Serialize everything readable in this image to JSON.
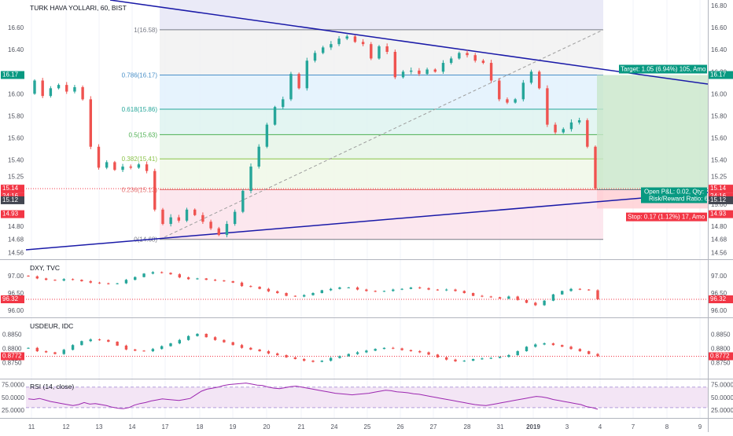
{
  "main": {
    "title": "TURK HAVA YOLLARI, 60, BIST",
    "price_axis": [
      "16.80",
      "16.60",
      "16.40",
      "16.20",
      "16.00",
      "15.80",
      "15.60",
      "15.40",
      "15.25",
      "15.00",
      "14.80",
      "14.68",
      "14.56"
    ],
    "price_left_ticks": [
      "16.60",
      "16.40",
      "16.17",
      "16.00",
      "15.80",
      "15.60",
      "15.40",
      "15.25",
      "15.14",
      "24:16",
      "15.12",
      "14.93",
      "14.80",
      "14.68",
      "14.56"
    ],
    "badges": {
      "last_price": {
        "value": "15.14",
        "color": "#f23645"
      },
      "countdown": {
        "value": "24:16",
        "color": "#f23645"
      },
      "entry": {
        "value": "15.12",
        "color": "#434651"
      },
      "stop": {
        "value": "14.93",
        "color": "#f23645"
      },
      "target": {
        "value": "16.17",
        "color": "#089981"
      }
    },
    "fib": [
      {
        "label": "1(16.58)",
        "price": 16.58,
        "color": "#787b86"
      },
      {
        "label": "0.786(16.17)",
        "price": 16.17,
        "color": "#4a90c8"
      },
      {
        "label": "0.618(15.86)",
        "price": 15.86,
        "color": "#26a69a"
      },
      {
        "label": "0.5(15.63)",
        "price": 15.63,
        "color": "#4caf50"
      },
      {
        "label": "0.382(15.41)",
        "price": 15.41,
        "color": "#8bc34a"
      },
      {
        "label": "0.236(15.13)",
        "price": 15.13,
        "color": "#e57373"
      },
      {
        "label": "0(14.68)",
        "price": 14.68,
        "color": "#787b86"
      }
    ],
    "position": {
      "target_text": "Target: 1.05 (6.94%) 105, Amo",
      "open_text": "Open P&L: 0.02, Qty:",
      "rr_text": "Risk/Reward Ratio: 6.",
      "stop_text": "Stop: 0.17 (1.12%) 17, Amo"
    }
  },
  "dxy": {
    "title": "DXY, TVC",
    "axis": [
      "97.00",
      "96.50",
      "96.00"
    ],
    "badge": {
      "value": "96.32",
      "color": "#f23645"
    }
  },
  "usdeur": {
    "title": "USDEUR, IDC",
    "axis": [
      "0.8850",
      "0.8800",
      "0.8750"
    ],
    "badge": {
      "value": "0.8772",
      "color": "#f23645"
    }
  },
  "rsi": {
    "title": "RSI (14, close)",
    "axis": [
      "75.0000",
      "50.0000",
      "25.0000"
    ],
    "line_color": "#9c27b0"
  },
  "time_axis": [
    "11",
    "12",
    "13",
    "14",
    "17",
    "18",
    "19",
    "20",
    "21",
    "24",
    "25",
    "26",
    "27",
    "28",
    "31",
    "2019",
    "3",
    "4",
    "7",
    "8",
    "9"
  ],
  "colors": {
    "up": "#26a69a",
    "down": "#ef5350",
    "trendline": "#1a1aa8"
  },
  "chart_data": [
    {
      "type": "candlestick",
      "title": "TURK HAVA YOLLARI, 60, BIST",
      "ylim": [
        14.5,
        16.85
      ],
      "trendlines": [
        {
          "name": "upper",
          "points": [
            {
              "x": "10",
              "y": 16.88
            },
            {
              "x": "9",
              "y": 16.01
            }
          ]
        },
        {
          "name": "lower",
          "points": [
            {
              "x": "11",
              "y": 14.55
            },
            {
              "x": "9",
              "y": 15.09
            }
          ]
        }
      ],
      "closes": [
        16.12,
        15.98,
        16.05,
        16.08,
        16.02,
        16.06,
        15.95,
        15.52,
        15.33,
        15.38,
        15.31,
        15.34,
        15.33,
        15.36,
        15.3,
        14.95,
        14.82,
        14.88,
        14.85,
        14.95,
        14.9,
        14.84,
        14.78,
        14.72,
        14.82,
        14.93,
        15.12,
        15.34,
        15.52,
        15.72,
        15.88,
        15.95,
        16.18,
        16.05,
        16.3,
        16.37,
        16.42,
        16.45,
        16.5,
        16.52,
        16.47,
        16.45,
        16.32,
        16.43,
        16.38,
        16.15,
        16.2,
        16.21,
        16.18,
        16.22,
        16.2,
        16.28,
        16.32,
        16.37,
        16.35,
        16.3,
        16.28,
        16.12,
        15.95,
        15.92,
        15.95,
        16.1,
        16.2,
        16.05,
        15.72,
        15.65,
        15.68,
        15.74,
        15.76,
        15.52,
        15.14
      ]
    },
    {
      "type": "candlestick",
      "title": "DXY, TVC",
      "ylim": [
        95.8,
        97.45
      ],
      "closes": [
        96.98,
        96.92,
        96.88,
        96.86,
        96.9,
        96.88,
        96.84,
        96.8,
        96.78,
        96.76,
        96.78,
        96.88,
        96.96,
        97.06,
        97.1,
        97.08,
        97.04,
        96.95,
        96.9,
        96.92,
        96.88,
        96.86,
        96.84,
        96.8,
        96.7,
        96.68,
        96.62,
        96.55,
        96.5,
        96.42,
        96.4,
        96.44,
        96.5,
        96.58,
        96.62,
        96.66,
        96.66,
        96.6,
        96.56,
        96.54,
        96.56,
        96.6,
        96.62,
        96.66,
        96.64,
        96.6,
        96.58,
        96.6,
        96.56,
        96.5,
        96.42,
        96.4,
        96.38,
        96.34,
        96.4,
        96.3,
        96.22,
        96.15,
        96.28,
        96.46,
        96.56,
        96.62,
        96.6,
        96.58,
        96.32
      ]
    },
    {
      "type": "candlestick",
      "title": "USDEUR, IDC",
      "ylim": [
        0.8692,
        0.8908
      ],
      "closes": [
        0.8802,
        0.879,
        0.8786,
        0.878,
        0.8795,
        0.8812,
        0.8826,
        0.8832,
        0.883,
        0.8824,
        0.881,
        0.8796,
        0.8792,
        0.879,
        0.8798,
        0.8808,
        0.8818,
        0.883,
        0.8844,
        0.8852,
        0.884,
        0.883,
        0.8822,
        0.8812,
        0.8802,
        0.8796,
        0.879,
        0.8782,
        0.8776,
        0.8768,
        0.8762,
        0.8756,
        0.8752,
        0.8756,
        0.8766,
        0.8772,
        0.878,
        0.8786,
        0.8792,
        0.8798,
        0.8802,
        0.88,
        0.8794,
        0.879,
        0.8786,
        0.8778,
        0.8768,
        0.876,
        0.8754,
        0.8756,
        0.8762,
        0.8764,
        0.8766,
        0.877,
        0.8776,
        0.879,
        0.8806,
        0.8814,
        0.8818,
        0.8812,
        0.8806,
        0.8798,
        0.879,
        0.878,
        0.8772
      ]
    },
    {
      "type": "line",
      "title": "RSI (14, close)",
      "ylim": [
        10,
        85
      ],
      "bands": [
        30,
        70
      ],
      "values": [
        47,
        46,
        48,
        45,
        42,
        40,
        38,
        36,
        34,
        36,
        40,
        37,
        38,
        36,
        34,
        31,
        29,
        28,
        30,
        35,
        38,
        40,
        43,
        45,
        47,
        46,
        45,
        44,
        46,
        48,
        55,
        62,
        66,
        68,
        70,
        73,
        75,
        76,
        77,
        78,
        76,
        74,
        73,
        70,
        68,
        67,
        69,
        71,
        72,
        70,
        68,
        66,
        64,
        62,
        60,
        58,
        57,
        56,
        55,
        56,
        57,
        58,
        60,
        62,
        64,
        63,
        61,
        60,
        59,
        57,
        56,
        54,
        52,
        50,
        48,
        46,
        44,
        42,
        40,
        38,
        36,
        35,
        34,
        36,
        38,
        40,
        42,
        44,
        46,
        48,
        50,
        52,
        51,
        49,
        46,
        44,
        42,
        40,
        38,
        36,
        32,
        30,
        27
      ]
    }
  ]
}
